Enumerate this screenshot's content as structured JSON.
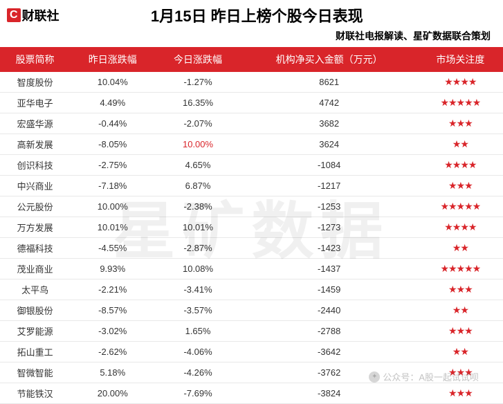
{
  "logo": {
    "prefix": "C",
    "text": "财联社"
  },
  "title": "1月15日 昨日上榜个股今日表现",
  "subtitle": "财联社电报解读、星矿数据联合策划",
  "watermark": "星矿数据",
  "wechat_overlay": "公众号：A股一起试试呗",
  "columns": [
    "股票简称",
    "昨日涨跌幅",
    "今日涨跌幅",
    "机构净买入金额（万元）",
    "市场关注度"
  ],
  "colors": {
    "header_bg": "#d9252a",
    "header_fg": "#ffffff",
    "highlight": "#d9252a",
    "star": "#d9252a",
    "row_border": "#e8e8e8"
  },
  "rows": [
    {
      "name": "智度股份",
      "yesterday": "10.04%",
      "today": "-1.27%",
      "today_hl": false,
      "amount": "8621",
      "stars": 4
    },
    {
      "name": "亚华电子",
      "yesterday": "4.49%",
      "today": "16.35%",
      "today_hl": false,
      "amount": "4742",
      "stars": 5
    },
    {
      "name": "宏盛华源",
      "yesterday": "-0.44%",
      "today": "-2.07%",
      "today_hl": false,
      "amount": "3682",
      "stars": 3
    },
    {
      "name": "高新发展",
      "yesterday": "-8.05%",
      "today": "10.00%",
      "today_hl": true,
      "amount": "3624",
      "stars": 2
    },
    {
      "name": "创识科技",
      "yesterday": "-2.75%",
      "today": "4.65%",
      "today_hl": false,
      "amount": "-1084",
      "stars": 4
    },
    {
      "name": "中兴商业",
      "yesterday": "-7.18%",
      "today": "6.87%",
      "today_hl": false,
      "amount": "-1217",
      "stars": 3
    },
    {
      "name": "公元股份",
      "yesterday": "10.00%",
      "today": "-2.38%",
      "today_hl": false,
      "amount": "-1253",
      "stars": 5
    },
    {
      "name": "万方发展",
      "yesterday": "10.01%",
      "today": "10.01%",
      "today_hl": false,
      "amount": "-1273",
      "stars": 4
    },
    {
      "name": "德福科技",
      "yesterday": "-4.55%",
      "today": "-2.87%",
      "today_hl": false,
      "amount": "-1423",
      "stars": 2
    },
    {
      "name": "茂业商业",
      "yesterday": "9.93%",
      "today": "10.08%",
      "today_hl": false,
      "amount": "-1437",
      "stars": 5
    },
    {
      "name": "太平鸟",
      "yesterday": "-2.21%",
      "today": "-3.41%",
      "today_hl": false,
      "amount": "-1459",
      "stars": 3
    },
    {
      "name": "御银股份",
      "yesterday": "-8.57%",
      "today": "-3.57%",
      "today_hl": false,
      "amount": "-2440",
      "stars": 2
    },
    {
      "name": "艾罗能源",
      "yesterday": "-3.02%",
      "today": "1.65%",
      "today_hl": false,
      "amount": "-2788",
      "stars": 3
    },
    {
      "name": "拓山重工",
      "yesterday": "-2.62%",
      "today": "-4.06%",
      "today_hl": false,
      "amount": "-3642",
      "stars": 2
    },
    {
      "name": "智微智能",
      "yesterday": "5.18%",
      "today": "-4.26%",
      "today_hl": false,
      "amount": "-3762",
      "stars": 3
    },
    {
      "name": "节能铁汉",
      "yesterday": "20.00%",
      "today": "-7.69%",
      "today_hl": false,
      "amount": "-3824",
      "stars": 3
    }
  ]
}
